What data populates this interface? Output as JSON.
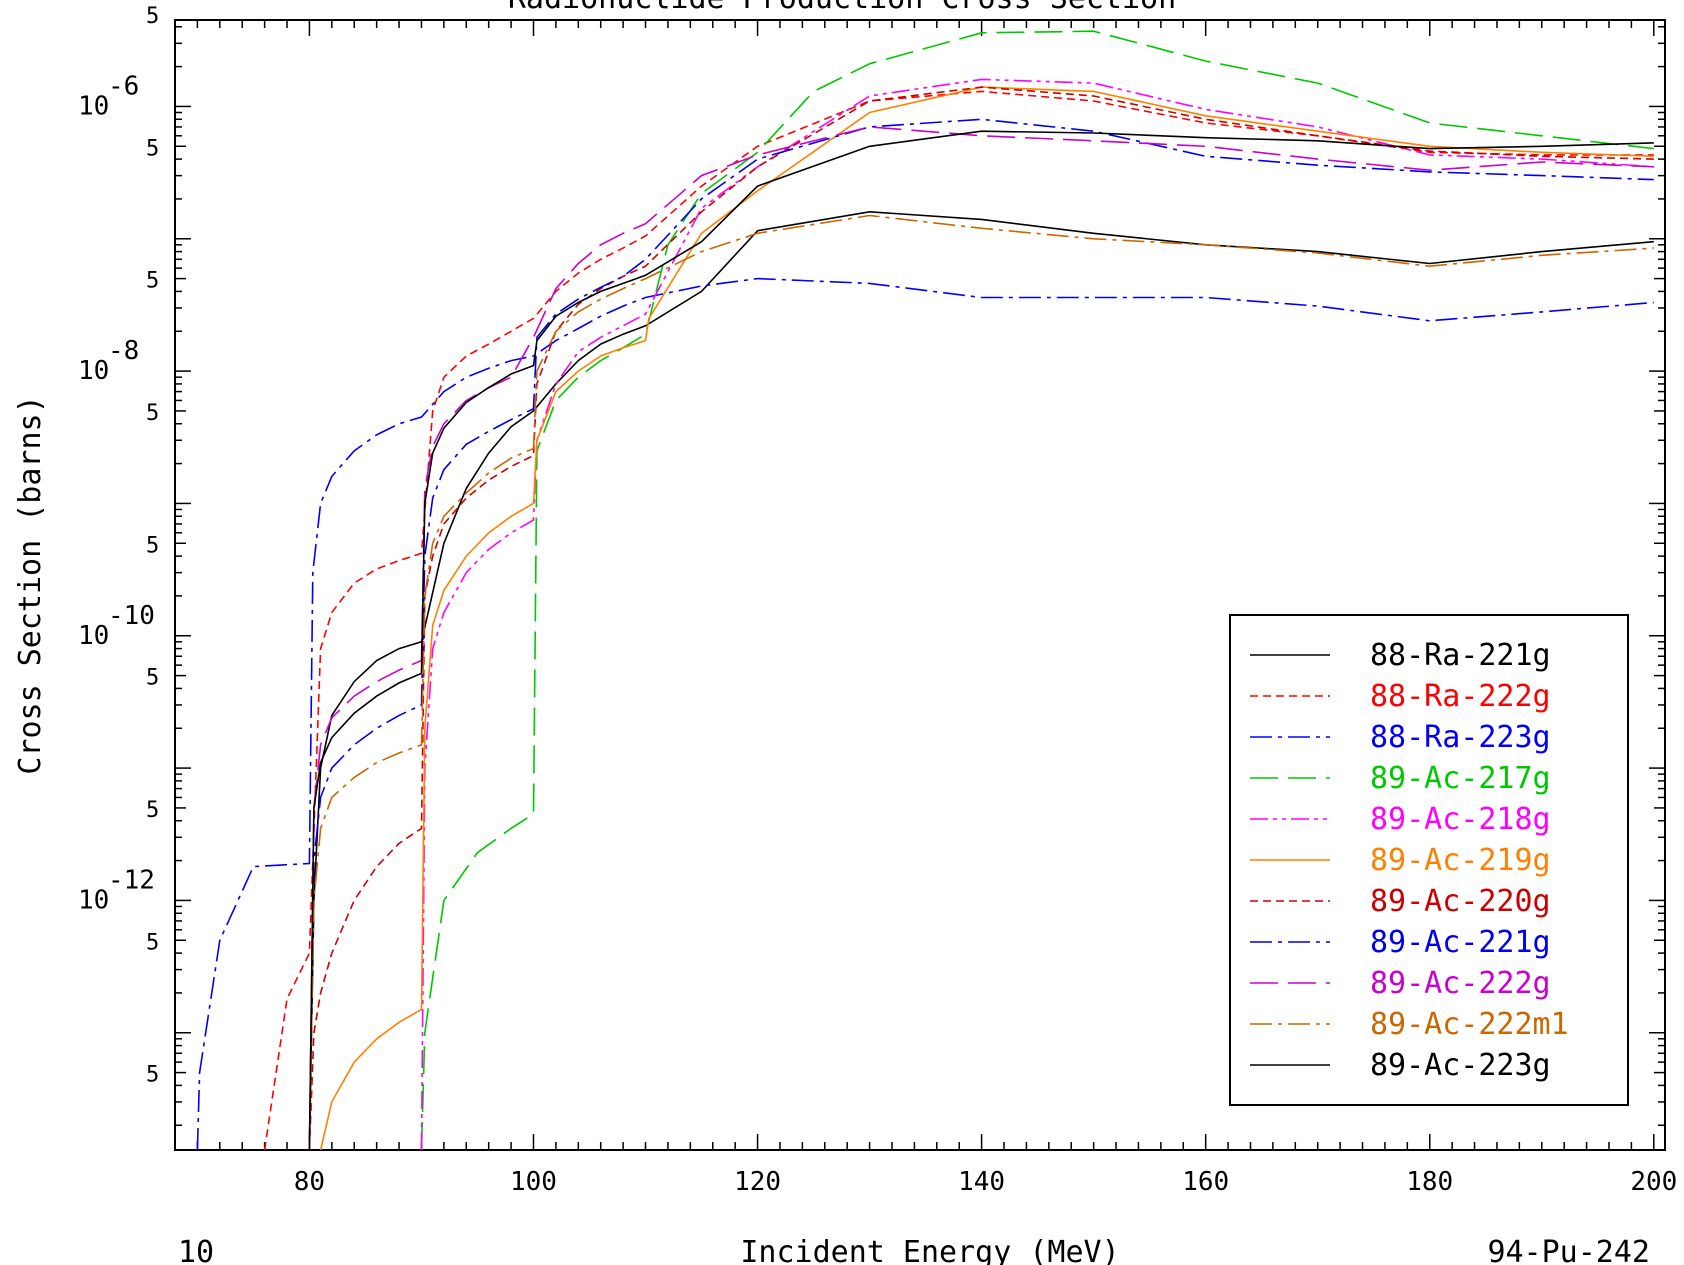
{
  "chart_data": {
    "type": "line",
    "title": "Radionuclide Production Cross Section",
    "xlabel": "Incident Energy (MeV)",
    "ylabel": "Cross Section (barns)",
    "xlim": [
      68,
      201
    ],
    "ylog": true,
    "ylim": [
      1.3e-14,
      4.5e-06
    ],
    "x_ticks": [
      80,
      100,
      120,
      140,
      160,
      180,
      200
    ],
    "y_decade_labels": [
      {
        "value": 1e-06,
        "mantissa": "10",
        "exponent": "-6"
      },
      {
        "value": 1e-08,
        "mantissa": "10",
        "exponent": "-8"
      },
      {
        "value": 1e-10,
        "mantissa": "10",
        "exponent": "-10"
      },
      {
        "value": 1e-12,
        "mantissa": "10",
        "exponent": "-12"
      }
    ],
    "y_five_labels": [
      5e-06,
      5e-07,
      5e-08,
      5e-09,
      5e-10,
      5e-11,
      5e-12,
      5e-13,
      5e-14
    ],
    "five_label_text": "5",
    "legend_position": "lower-right",
    "series": [
      {
        "name": "88-Ra-221g",
        "color": "#000000",
        "dash": "solid",
        "x": [
          80,
          80.4,
          81,
          82,
          84,
          86,
          88,
          90,
          92,
          94,
          96,
          98,
          100,
          102,
          104,
          106,
          108,
          110,
          115,
          120,
          130,
          140,
          150,
          160,
          170,
          180,
          190,
          200
        ],
        "y": [
          1.3e-14,
          1e-12,
          1e-11,
          2.5e-11,
          4.5e-11,
          6.5e-11,
          8e-11,
          9e-11,
          5e-10,
          1.3e-09,
          2.4e-09,
          3.8e-09,
          5e-09,
          8e-09,
          1.2e-08,
          1.6e-08,
          1.9e-08,
          2.2e-08,
          4e-08,
          1.15e-07,
          1.6e-07,
          1.4e-07,
          1.1e-07,
          9e-08,
          8e-08,
          6.5e-08,
          8e-08,
          9.5e-08
        ]
      },
      {
        "name": "88-Ra-222g",
        "color": "#ff0000",
        "dash": "short",
        "x": [
          76,
          78,
          80,
          81,
          82,
          84,
          86,
          88,
          90,
          91,
          92,
          94,
          96,
          98,
          100,
          102,
          104,
          106,
          108,
          110,
          115,
          120,
          130,
          140,
          150,
          160,
          170,
          180,
          190,
          200
        ],
        "y": [
          1.3e-14,
          1.8e-13,
          4e-13,
          8e-11,
          1.5e-10,
          2.5e-10,
          3.2e-10,
          3.7e-10,
          4.2e-10,
          5e-09,
          9e-09,
          1.3e-08,
          1.6e-08,
          2e-08,
          2.5e-08,
          4e-08,
          5.5e-08,
          7e-08,
          8.5e-08,
          1.05e-07,
          2.5e-07,
          5e-07,
          1.1e-06,
          1.3e-06,
          1.1e-06,
          7.5e-07,
          6e-07,
          4.5e-07,
          4.3e-07,
          4.3e-07
        ]
      },
      {
        "name": "88-Ra-223g",
        "color": "#0000ff",
        "dash": "dashdot",
        "x": [
          70,
          70.2,
          72,
          75,
          80,
          80.3,
          81,
          82,
          84,
          86,
          88,
          90,
          92,
          94,
          96,
          98,
          100,
          102,
          104,
          106,
          108,
          110,
          115,
          120,
          130,
          140,
          150,
          160,
          170,
          180,
          190,
          200
        ],
        "y": [
          1.3e-14,
          5e-14,
          5e-13,
          1.8e-12,
          1.9e-12,
          3e-10,
          1e-09,
          1.6e-09,
          2.5e-09,
          3.3e-09,
          4e-09,
          4.5e-09,
          7e-09,
          9e-09,
          1.05e-08,
          1.2e-08,
          1.3e-08,
          1.7e-08,
          2.1e-08,
          2.6e-08,
          3.1e-08,
          3.6e-08,
          4.4e-08,
          5e-08,
          4.6e-08,
          3.6e-08,
          3.6e-08,
          3.6e-08,
          3.1e-08,
          2.4e-08,
          2.8e-08,
          3.3e-08
        ]
      },
      {
        "name": "89-Ac-217g",
        "color": "#00c800",
        "dash": "longdash",
        "x": [
          90,
          90.3,
          92,
          95,
          98,
          100,
          100.3,
          102,
          104,
          106,
          108,
          110,
          112,
          115,
          120,
          125,
          130,
          140,
          150,
          160,
          170,
          180,
          190,
          200
        ],
        "y": [
          1.3e-14,
          1e-13,
          1e-12,
          2.3e-12,
          3.5e-12,
          4.5e-12,
          2.5e-09,
          6e-09,
          9e-09,
          1.2e-08,
          1.5e-08,
          1.9e-08,
          9e-08,
          2.2e-07,
          4.5e-07,
          1.3e-06,
          2.1e-06,
          3.6e-06,
          3.7e-06,
          2.2e-06,
          1.5e-06,
          7.5e-07,
          6e-07,
          4.8e-07
        ]
      },
      {
        "name": "89-Ac-218g",
        "color": "#ff00ff",
        "dash": "dashdotdot",
        "x": [
          90,
          90.3,
          91,
          92,
          94,
          96,
          98,
          100,
          100.3,
          102,
          104,
          106,
          108,
          110,
          115,
          120,
          130,
          140,
          150,
          160,
          170,
          180,
          190,
          200
        ],
        "y": [
          1.3e-14,
          1e-11,
          8e-11,
          1.5e-10,
          3e-10,
          4.5e-10,
          6e-10,
          7.5e-10,
          3e-09,
          8e-09,
          1.4e-08,
          1.8e-08,
          2.2e-08,
          2.7e-08,
          1.7e-07,
          3.5e-07,
          1.2e-06,
          1.6e-06,
          1.5e-06,
          9.5e-07,
          7e-07,
          4.3e-07,
          4e-07,
          3.5e-07
        ]
      },
      {
        "name": "89-Ac-219g",
        "color": "#ff8000",
        "dash": "solid",
        "x": [
          81,
          82,
          84,
          86,
          88,
          90,
          90.3,
          91,
          92,
          94,
          96,
          98,
          100,
          100.3,
          102,
          104,
          106,
          108,
          110,
          110.3,
          115,
          120,
          130,
          140,
          150,
          160,
          170,
          180,
          190,
          200
        ],
        "y": [
          1.3e-14,
          3e-14,
          6e-14,
          9e-14,
          1.2e-13,
          1.5e-13,
          2e-11,
          1.2e-10,
          2.2e-10,
          4e-10,
          6e-10,
          8e-10,
          1e-09,
          3e-09,
          7e-09,
          1e-08,
          1.3e-08,
          1.5e-08,
          1.7e-08,
          2.5e-08,
          1.1e-07,
          2.3e-07,
          9e-07,
          1.4e-06,
          1.3e-06,
          8.5e-07,
          6.5e-07,
          5e-07,
          4.5e-07,
          4.2e-07
        ]
      },
      {
        "name": "89-Ac-220g",
        "color": "#cc0000",
        "dash": "short",
        "x": [
          80,
          80.4,
          81,
          82,
          84,
          86,
          88,
          90,
          90.3,
          91,
          92,
          94,
          96,
          98,
          100,
          100.3,
          102,
          104,
          106,
          108,
          110,
          115,
          120,
          130,
          140,
          150,
          160,
          170,
          180,
          190,
          200
        ],
        "y": [
          1.3e-14,
          1e-13,
          2e-13,
          4e-13,
          1e-12,
          1.8e-12,
          2.7e-12,
          3.5e-12,
          2e-10,
          4e-10,
          7e-10,
          1.1e-09,
          1.5e-09,
          1.9e-09,
          2.3e-09,
          8e-09,
          2e-08,
          3.2e-08,
          4.2e-08,
          5.2e-08,
          6.2e-08,
          1.6e-07,
          3.5e-07,
          1.1e-06,
          1.4e-06,
          1.2e-06,
          8e-07,
          6e-07,
          4.6e-07,
          4.2e-07,
          4e-07
        ]
      },
      {
        "name": "89-Ac-221g",
        "color": "#0000ee",
        "dash": "dashdot",
        "x": [
          80,
          80.4,
          81,
          82,
          84,
          86,
          88,
          90,
          90.3,
          91,
          92,
          94,
          96,
          98,
          100,
          100.3,
          102,
          104,
          106,
          108,
          110,
          115,
          120,
          130,
          140,
          150,
          160,
          170,
          180,
          190,
          200
        ],
        "y": [
          1.3e-14,
          2e-12,
          6e-12,
          1e-11,
          1.5e-11,
          2e-11,
          2.5e-11,
          3e-11,
          4e-10,
          1.1e-09,
          1.8e-09,
          2.8e-09,
          3.5e-09,
          4.3e-09,
          5.2e-09,
          1.8e-08,
          2.7e-08,
          3.5e-08,
          4.3e-08,
          5.2e-08,
          7e-08,
          2e-07,
          4e-07,
          7e-07,
          8e-07,
          6.5e-07,
          4.2e-07,
          3.6e-07,
          3.2e-07,
          3e-07,
          2.8e-07
        ]
      },
      {
        "name": "89-Ac-222g",
        "color": "#cc00cc",
        "dash": "longdash",
        "x": [
          80,
          80.4,
          81,
          82,
          84,
          86,
          88,
          90,
          90.3,
          91,
          92,
          94,
          96,
          98,
          100,
          102,
          104,
          106,
          108,
          110,
          115,
          120,
          130,
          140,
          150,
          160,
          170,
          180,
          190,
          200
        ],
        "y": [
          1.3e-14,
          5e-12,
          1.5e-11,
          2.4e-11,
          3.5e-11,
          4.5e-11,
          5.5e-11,
          6.5e-11,
          1.3e-09,
          2.7e-09,
          4e-09,
          6e-09,
          7.5e-09,
          9e-09,
          1.8e-08,
          4.2e-08,
          6.5e-08,
          9e-08,
          1.1e-07,
          1.3e-07,
          3e-07,
          4.3e-07,
          7e-07,
          6e-07,
          5.5e-07,
          5e-07,
          4e-07,
          3.3e-07,
          3.8e-07,
          3.5e-07
        ]
      },
      {
        "name": "89-Ac-222m1",
        "color": "#cc6600",
        "dash": "dashdot",
        "x": [
          80,
          80.4,
          81,
          82,
          84,
          86,
          88,
          90,
          90.3,
          91,
          92,
          94,
          96,
          98,
          100,
          100.3,
          102,
          104,
          106,
          108,
          110,
          115,
          120,
          130,
          140,
          150,
          160,
          170,
          180,
          190,
          200
        ],
        "y": [
          1.3e-14,
          1e-12,
          3.5e-12,
          6e-12,
          8.5e-12,
          1.1e-11,
          1.3e-11,
          1.5e-11,
          2e-10,
          5e-10,
          8e-10,
          1.2e-09,
          1.7e-09,
          2.2e-09,
          2.6e-09,
          1e-08,
          2e-08,
          2.8e-08,
          3.5e-08,
          4.2e-08,
          5e-08,
          8e-08,
          1.1e-07,
          1.5e-07,
          1.2e-07,
          1e-07,
          9e-08,
          7.8e-08,
          6.2e-08,
          7.5e-08,
          8.5e-08
        ]
      },
      {
        "name": "89-Ac-223g",
        "color": "#000000",
        "dash": "solid",
        "x": [
          80,
          80.4,
          81,
          82,
          84,
          86,
          88,
          90,
          90.3,
          91,
          92,
          94,
          96,
          98,
          100,
          100.3,
          102,
          104,
          106,
          108,
          110,
          115,
          120,
          130,
          140,
          150,
          160,
          170,
          180,
          190,
          200
        ],
        "y": [
          1.3e-14,
          5e-12,
          1.1e-11,
          1.7e-11,
          2.6e-11,
          3.5e-11,
          4.4e-11,
          5.2e-11,
          1e-09,
          2.4e-09,
          3.7e-09,
          5.8e-09,
          7.5e-09,
          9.5e-09,
          1.1e-08,
          1.7e-08,
          2.6e-08,
          3.3e-08,
          4e-08,
          4.6e-08,
          5.3e-08,
          9.5e-08,
          2.5e-07,
          5e-07,
          6.5e-07,
          6.3e-07,
          5.8e-07,
          5.5e-07,
          4.8e-07,
          5e-07,
          5.3e-07
        ]
      }
    ]
  },
  "footer": {
    "left": "10",
    "right": "94-Pu-242"
  }
}
